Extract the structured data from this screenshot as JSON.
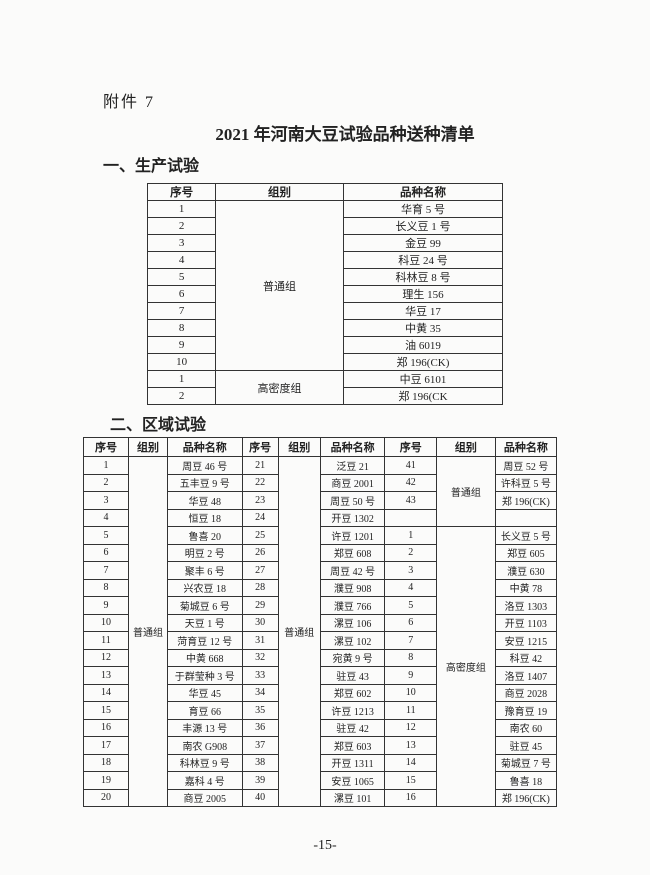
{
  "attachment_label": "附件 7",
  "title": "2021 年河南大豆试验品种送种清单",
  "section1": {
    "heading": "一、生产试验",
    "headers": [
      "序号",
      "组别",
      "品种名称"
    ],
    "groups": [
      {
        "name": "普通组",
        "rows": [
          [
            "1",
            "华育 5 号"
          ],
          [
            "2",
            "长义豆 1 号"
          ],
          [
            "3",
            "金豆 99"
          ],
          [
            "4",
            "科豆 24 号"
          ],
          [
            "5",
            "科林豆 8 号"
          ],
          [
            "6",
            "理生 156"
          ],
          [
            "7",
            "华豆 17"
          ],
          [
            "8",
            "中黄 35"
          ],
          [
            "9",
            "油 6019"
          ],
          [
            "10",
            "郑 196(CK)"
          ]
        ]
      },
      {
        "name": "高密度组",
        "rows": [
          [
            "1",
            "中豆 6101"
          ],
          [
            "2",
            "郑 196(CK"
          ]
        ]
      }
    ]
  },
  "section2": {
    "heading": "二、区域试验",
    "headers": [
      "序号",
      "组别",
      "品种名称",
      "序号",
      "组别",
      "品种名称",
      "序号",
      "组别",
      "品种名称"
    ],
    "block1_group": "普通组",
    "block1": [
      [
        "1",
        "周豆 46 号"
      ],
      [
        "2",
        "五丰豆 9 号"
      ],
      [
        "3",
        "华豆 48"
      ],
      [
        "4",
        "恒豆 18"
      ],
      [
        "5",
        "鲁喜 20"
      ],
      [
        "6",
        "明豆 2 号"
      ],
      [
        "7",
        "聚丰 6 号"
      ],
      [
        "8",
        "兴农豆 18"
      ],
      [
        "9",
        "菊城豆 6 号"
      ],
      [
        "10",
        "天豆 1 号"
      ],
      [
        "11",
        "菏育豆 12 号"
      ],
      [
        "12",
        "中黄 668"
      ],
      [
        "13",
        "于群莹种 3 号"
      ],
      [
        "14",
        "华豆 45"
      ],
      [
        "15",
        "育豆 66"
      ],
      [
        "16",
        "丰源 13 号"
      ],
      [
        "17",
        "南农 G908"
      ],
      [
        "18",
        "科林豆 9 号"
      ],
      [
        "19",
        "嘉科 4 号"
      ],
      [
        "20",
        "商豆 2005"
      ]
    ],
    "block2_group": "普通组",
    "block2": [
      [
        "21",
        "泛豆 21"
      ],
      [
        "22",
        "商豆 2001"
      ],
      [
        "23",
        "周豆 50 号"
      ],
      [
        "24",
        "开豆 1302"
      ],
      [
        "25",
        "许豆 1201"
      ],
      [
        "26",
        "郑豆 608"
      ],
      [
        "27",
        "周豆 42 号"
      ],
      [
        "28",
        "濮豆 908"
      ],
      [
        "29",
        "濮豆 766"
      ],
      [
        "30",
        "漯豆 106"
      ],
      [
        "31",
        "漯豆 102"
      ],
      [
        "32",
        "宛黄 9 号"
      ],
      [
        "33",
        "驻豆 43"
      ],
      [
        "34",
        "郑豆 602"
      ],
      [
        "35",
        "许豆 1213"
      ],
      [
        "36",
        "驻豆 42"
      ],
      [
        "37",
        "郑豆 603"
      ],
      [
        "38",
        "开豆 1311"
      ],
      [
        "39",
        "安豆 1065"
      ],
      [
        "40",
        "漯豆 101"
      ]
    ],
    "block3_groups": [
      {
        "name": "普通组",
        "rows": [
          [
            "41",
            "周豆 52 号"
          ],
          [
            "42",
            "许科豆 5 号"
          ],
          [
            "43",
            "郑 196(CK)"
          ],
          [
            "",
            ""
          ]
        ]
      },
      {
        "name": "高密度组",
        "rows": [
          [
            "1",
            "长义豆 5 号"
          ],
          [
            "2",
            "郑豆 605"
          ],
          [
            "3",
            "濮豆 630"
          ],
          [
            "4",
            "中黄 78"
          ],
          [
            "5",
            "洛豆 1303"
          ],
          [
            "6",
            "开豆 1103"
          ],
          [
            "7",
            "安豆 1215"
          ],
          [
            "8",
            "科豆 42"
          ],
          [
            "9",
            "洛豆 1407"
          ],
          [
            "10",
            "商豆 2028"
          ],
          [
            "11",
            "豫育豆 19"
          ],
          [
            "12",
            "南农 60"
          ],
          [
            "13",
            "驻豆 45"
          ],
          [
            "14",
            "菊城豆 7 号"
          ],
          [
            "15",
            "鲁喜 18"
          ],
          [
            "16",
            "郑 196(CK)"
          ]
        ]
      }
    ]
  },
  "page_number": "-15-"
}
